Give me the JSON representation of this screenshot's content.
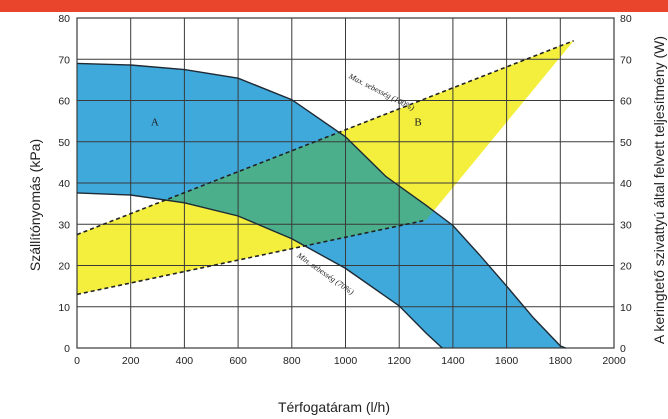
{
  "header": {
    "bar_color": "#e8452c"
  },
  "colors": {
    "blue": "#3fa9dc",
    "yellow": "#f4ef3c",
    "overlap": "#4aaf8a",
    "grid": "#3a3a3a",
    "plot_bg": "#ffffff"
  },
  "chart_data": {
    "type": "area",
    "x_axis": {
      "label": "Térfogatáram (l/h)",
      "range": [
        0,
        2000
      ],
      "ticks": [
        0,
        200,
        400,
        600,
        800,
        1000,
        1200,
        1400,
        1600,
        1800,
        2000
      ],
      "grid": true
    },
    "y_left": {
      "label": "Szállítónyomás (kPa)",
      "range": [
        0,
        80
      ],
      "ticks": [
        0,
        10,
        20,
        30,
        40,
        50,
        60,
        70,
        80
      ]
    },
    "y_right": {
      "label": "A keringtető szivattyú által felvett teljesítmény (W)",
      "range": [
        0,
        80
      ],
      "ticks": [
        0,
        10,
        20,
        30,
        40,
        50,
        60,
        70,
        80
      ]
    },
    "regions": [
      {
        "name": "A",
        "color": "blue",
        "axis": "left",
        "upper": [
          [
            0,
            69
          ],
          [
            200,
            68.6
          ],
          [
            400,
            67.5
          ],
          [
            600,
            65.4
          ],
          [
            800,
            60.2
          ],
          [
            1000,
            51.2
          ],
          [
            1150,
            41.6
          ],
          [
            1300,
            34.6
          ],
          [
            1400,
            29.7
          ],
          [
            1500,
            22.5
          ],
          [
            1600,
            15
          ],
          [
            1700,
            7.3
          ],
          [
            1800,
            0.5
          ],
          [
            1820,
            0
          ]
        ],
        "lower": [
          [
            0,
            37.6
          ],
          [
            200,
            37.1
          ],
          [
            400,
            35.2
          ],
          [
            600,
            32
          ],
          [
            800,
            26.5
          ],
          [
            1000,
            19.3
          ],
          [
            1200,
            10.2
          ],
          [
            1300,
            3.6
          ],
          [
            1360,
            0
          ]
        ]
      },
      {
        "name": "B",
        "color": "yellow",
        "axis": "right",
        "upper": [
          [
            0,
            27.5
          ],
          [
            1850,
            74.5
          ]
        ],
        "lower": [
          [
            0,
            13
          ],
          [
            1300,
            31
          ]
        ],
        "right_edge": [
          [
            1300,
            31
          ],
          [
            1850,
            74.5
          ]
        ]
      }
    ],
    "curves": [
      {
        "label": "Max. sebesség (100%)",
        "points": [
          [
            0,
            69
          ],
          [
            200,
            68.6
          ],
          [
            400,
            67.5
          ],
          [
            600,
            65.4
          ],
          [
            800,
            60.2
          ],
          [
            1000,
            51.2
          ],
          [
            1150,
            41.6
          ],
          [
            1300,
            34.6
          ],
          [
            1400,
            29.7
          ],
          [
            1500,
            22.5
          ],
          [
            1600,
            15
          ],
          [
            1700,
            7.3
          ],
          [
            1800,
            0.5
          ],
          [
            1820,
            0
          ]
        ]
      },
      {
        "label": "Min. sebesség (70%)",
        "points": [
          [
            0,
            37.6
          ],
          [
            200,
            37.1
          ],
          [
            400,
            35.2
          ],
          [
            600,
            32
          ],
          [
            800,
            26.5
          ],
          [
            1000,
            19.3
          ],
          [
            1200,
            10.2
          ],
          [
            1300,
            3.6
          ],
          [
            1360,
            0
          ]
        ]
      }
    ],
    "dashed_lines": [
      {
        "points": [
          [
            0,
            27.5
          ],
          [
            1850,
            74.5
          ]
        ]
      },
      {
        "points": [
          [
            0,
            13
          ],
          [
            1300,
            31
          ]
        ]
      }
    ],
    "region_labels": [
      {
        "text": "A",
        "x": 290,
        "y": 54
      },
      {
        "text": "B",
        "x": 1270,
        "y": 54
      }
    ],
    "curve_label_positions": [
      {
        "curve": 0,
        "x": 1130,
        "y": 61.5,
        "angle": 27
      },
      {
        "curve": 1,
        "x": 920,
        "y": 17.5,
        "angle": 35
      }
    ]
  }
}
